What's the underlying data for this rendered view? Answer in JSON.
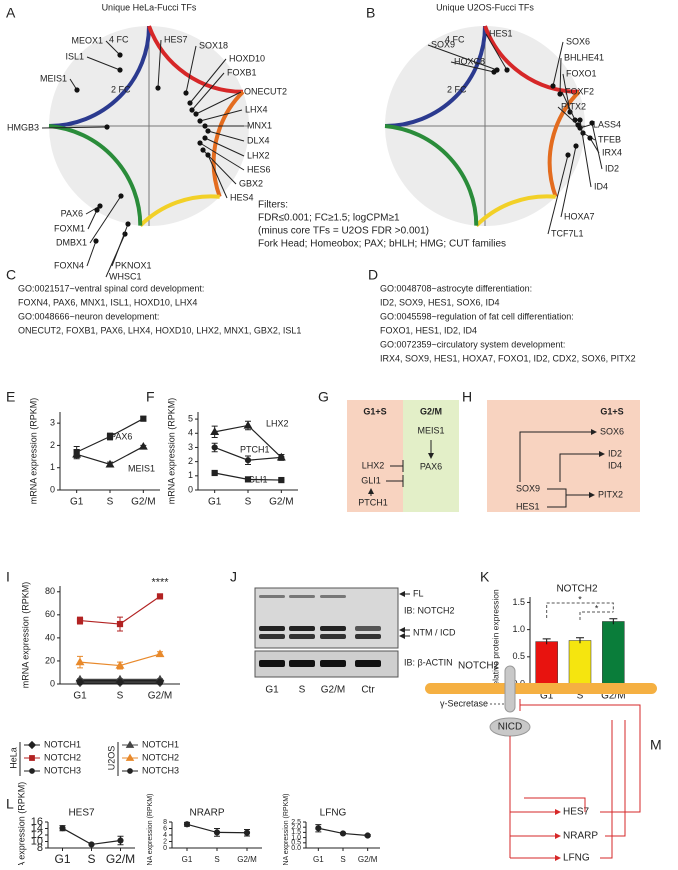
{
  "A": {
    "label": "A",
    "title": "Unique HeLa-Fucci TFs",
    "fc4": "4 FC",
    "fc2": "2 FC",
    "genes": [
      "MEOX1",
      "ISL1",
      "MEIS1",
      "HMGB3",
      "PAX6",
      "FOXM1",
      "DMBX1",
      "FOXN4",
      "WHSC1",
      "PKNOX1",
      "HES7",
      "SOX18",
      "HOXD10",
      "FOXB1",
      "ONECUT2",
      "LHX4",
      "MNX1",
      "DLX4",
      "LHX2",
      "HES6",
      "GBX2",
      "HES4"
    ]
  },
  "B": {
    "label": "B",
    "title": "Unique U2OS-Fucci TFs",
    "fc4": "4 FC",
    "fc2": "2 FC",
    "genes": [
      "SOX9",
      "HES1",
      "HOXC8",
      "SOX6",
      "BHLHE41",
      "FOXO1",
      "FOXF2",
      "PITX2",
      "LASS4",
      "TFEB",
      "IRX4",
      "ID2",
      "ID4",
      "HOXA7",
      "TCF7L1"
    ]
  },
  "filters": [
    "Filters:",
    "FDR≤0.001; FC≥1.5; logCPM≥1",
    "(minus core TFs = U2OS FDR >0.001)",
    "Fork Head; Homeobox; PAX; bHLH; HMG; CUT families"
  ],
  "C": {
    "label": "C",
    "lines": [
      "GO:0021517~ventral spinal cord development:",
      "FOXN4, PAX6, MNX1, ISL1, HOXD10, LHX4",
      "GO:0048666~neuron development:",
      "ONECUT2, FOXB1, PAX6, LHX4, HOXD10, LHX2, MNX1, GBX2, ISL1"
    ]
  },
  "D": {
    "label": "D",
    "lines": [
      "GO:0048708~astrocyte differentiation:",
      "ID2, SOX9, HES1, SOX6, ID4",
      "GO:0045598~regulation of fat cell differentiation:",
      "FOXO1, HES1, ID2, ID4",
      "GO:0072359~circulatory system development:",
      "IRX4, SOX9, HES1, HOXA7, FOXO1, ID2, CDX2, SOX6, PITX2"
    ]
  },
  "E": {
    "label": "E",
    "type": "line",
    "ylabel": "mRNA expression (RPKM)",
    "categories": [
      "G1",
      "S",
      "G2/M"
    ],
    "ylim": [
      0,
      3.5
    ],
    "yticks": [
      0,
      1,
      2,
      3
    ],
    "series": [
      {
        "name": "PAX6",
        "marker": "square",
        "color": "#222222",
        "values": [
          1.7,
          2.4,
          3.2
        ],
        "errors": [
          0.25,
          0.15,
          0.1
        ]
      },
      {
        "name": "MEIS1",
        "marker": "triangle",
        "color": "#222222",
        "values": [
          1.6,
          1.15,
          1.95
        ],
        "errors": [
          0.2,
          0.1,
          0.05
        ]
      }
    ]
  },
  "F": {
    "label": "F",
    "type": "line",
    "ylabel": "mRNA expression (RPKM)",
    "categories": [
      "G1",
      "S",
      "G2/M"
    ],
    "ylim": [
      0,
      5.5
    ],
    "yticks": [
      0,
      1,
      2,
      3,
      4,
      5
    ],
    "series": [
      {
        "name": "LHX2",
        "marker": "triangle",
        "color": "#222222",
        "values": [
          4.1,
          4.55,
          2.3
        ],
        "errors": [
          0.4,
          0.3,
          0.2
        ]
      },
      {
        "name": "PTCH1",
        "marker": "circle",
        "color": "#222222",
        "values": [
          3.0,
          2.1,
          2.3
        ],
        "errors": [
          0.3,
          0.3,
          0.2
        ]
      },
      {
        "name": "GLI1",
        "marker": "square",
        "color": "#222222",
        "values": [
          1.2,
          0.75,
          0.7
        ],
        "errors": [
          0.05,
          0.05,
          0.05
        ]
      }
    ]
  },
  "G": {
    "label": "G",
    "phases": [
      "G1+S",
      "G2/M"
    ],
    "genes": [
      "MEIS1",
      "PAX6",
      "LHX2",
      "GLI1",
      "PTCH1"
    ]
  },
  "H": {
    "label": "H",
    "phase": "G1+S",
    "genes": [
      "SOX6",
      "ID2",
      "ID4",
      "SOX9",
      "PITX2",
      "HES1"
    ]
  },
  "I": {
    "label": "I",
    "type": "line",
    "ylabel": "mRNA expression (RPKM)",
    "categories": [
      "G1",
      "S",
      "G2/M"
    ],
    "ylim": [
      0,
      85
    ],
    "yticks": [
      0,
      20,
      40,
      60,
      80
    ],
    "annotation": "****",
    "cell_lines": [
      {
        "name": "HeLa",
        "series": [
          {
            "name": "NOTCH1",
            "marker": "diamond",
            "color": "#222222",
            "values": [
              3,
              3,
              3
            ],
            "errors": [
              0.5,
              0.5,
              0.5
            ]
          },
          {
            "name": "NOTCH2",
            "marker": "square",
            "color": "#b22222",
            "values": [
              55,
              52,
              76
            ],
            "errors": [
              3,
              6,
              1
            ]
          },
          {
            "name": "NOTCH3",
            "marker": "circle",
            "color": "#222222",
            "values": [
              1,
              1,
              1
            ],
            "errors": [
              0.3,
              0.3,
              0.3
            ]
          }
        ]
      },
      {
        "name": "U2OS",
        "series": [
          {
            "name": "NOTCH1",
            "marker": "triangle",
            "color": "#444444",
            "values": [
              4,
              4,
              4
            ],
            "errors": [
              0.5,
              0.5,
              0.5
            ]
          },
          {
            "name": "NOTCH2",
            "marker": "triangle",
            "color": "#e8892b",
            "values": [
              19,
              16,
              26
            ],
            "errors": [
              5,
              3,
              2
            ]
          },
          {
            "name": "NOTCH3",
            "marker": "circle",
            "color": "#222222",
            "values": [
              2,
              2,
              2
            ],
            "errors": [
              0.3,
              0.3,
              0.3
            ]
          }
        ]
      }
    ]
  },
  "J": {
    "label": "J",
    "bands": [
      "FL",
      "NTM / ICD"
    ],
    "antibodies": [
      "IB: NOTCH2",
      "IB: β-ACTIN"
    ],
    "lanes": [
      "G1",
      "S",
      "G2/M",
      "Ctr"
    ]
  },
  "K": {
    "label": "K",
    "type": "bar",
    "title": "NOTCH2",
    "ylabel": "Relative protein expression",
    "categories": [
      "G1",
      "S",
      "G2/M"
    ],
    "values": [
      0.78,
      0.8,
      1.15
    ],
    "errors": [
      0.05,
      0.05,
      0.05
    ],
    "colors": [
      "#e8130f",
      "#f5e50f",
      "#0a7d3a"
    ],
    "ylim": [
      0,
      1.6
    ],
    "yticks": [
      {
        "value": 0,
        "label": "0.0"
      },
      0.5,
      {
        "value": 1,
        "label": "1.0"
      },
      1.5
    ],
    "significance": [
      "*",
      "*"
    ]
  },
  "L": {
    "label": "L",
    "charts": [
      {
        "type": "line",
        "title": "HES7",
        "ylabel": "mRNA expression (RPKM)",
        "categories": [
          "G1",
          "S",
          "G2/M"
        ],
        "ylim": [
          8,
          16
        ],
        "yticks": [
          8,
          10,
          12,
          14,
          16
        ],
        "values": [
          14.1,
          9.1,
          10.3
        ],
        "errors": [
          0.8,
          0.1,
          1.3
        ]
      },
      {
        "type": "line",
        "title": "NRARP",
        "ylabel": "mRNA expression (RPKM)",
        "categories": [
          "G1",
          "S",
          "G2/M"
        ],
        "ylim": [
          0,
          8
        ],
        "yticks": [
          0,
          2,
          4,
          6,
          8
        ],
        "values": [
          7.3,
          4.8,
          4.7
        ],
        "errors": [
          0.6,
          1.2,
          1.0
        ]
      },
      {
        "type": "line",
        "title": "LFNG",
        "ylabel": "mRNA expression (RPKM)",
        "categories": [
          "G1",
          "S",
          "G2/M"
        ],
        "ylim": [
          0,
          2.5
        ],
        "yticks": [
          {
            "value": 0,
            "label": "0.0"
          },
          0.5,
          {
            "value": 1,
            "label": "1.0"
          },
          1.5,
          {
            "value": 2,
            "label": "2.0"
          },
          2.5
        ],
        "values": [
          1.9,
          1.4,
          1.2
        ],
        "errors": [
          0.35,
          0.05,
          0.1
        ]
      }
    ]
  },
  "M": {
    "label": "M",
    "receptor": "NOTCH2",
    "enzyme": "γ-Secretase",
    "domain": "NICD",
    "targets": [
      "HES7",
      "NRARP",
      "LFNG"
    ]
  }
}
